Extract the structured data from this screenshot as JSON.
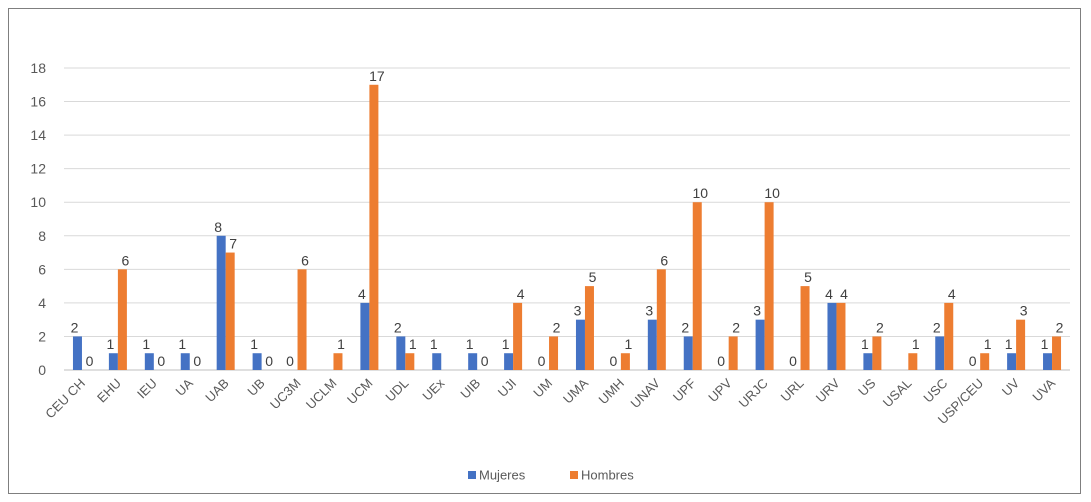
{
  "chart_data": {
    "type": "bar",
    "categories": [
      "CEU CH",
      "EHU",
      "IEU",
      "UA",
      "UAB",
      "UB",
      "UC3M",
      "UCLM",
      "UCM",
      "UDL",
      "UEx",
      "UIB",
      "UJI",
      "UM",
      "UMA",
      "UMH",
      "UNAV",
      "UPF",
      "UPV",
      "URJC",
      "URL",
      "URV",
      "US",
      "USAL",
      "USC",
      "USP/CEU",
      "UV",
      "UVA"
    ],
    "series": [
      {
        "name": "Mujeres",
        "color": "#4472c4",
        "values": [
          2,
          1,
          1,
          1,
          8,
          1,
          0,
          null,
          4,
          2,
          1,
          1,
          1,
          0,
          3,
          0,
          3,
          2,
          0,
          3,
          0,
          4,
          1,
          null,
          2,
          0,
          1,
          1
        ]
      },
      {
        "name": "Hombres",
        "color": "#ed7d31",
        "values": [
          0,
          6,
          0,
          0,
          7,
          0,
          6,
          1,
          17,
          1,
          null,
          0,
          4,
          2,
          5,
          1,
          6,
          10,
          2,
          10,
          5,
          4,
          2,
          1,
          4,
          1,
          3,
          2
        ]
      }
    ],
    "ylim": [
      0,
      18
    ],
    "yticks": [
      0,
      2,
      4,
      6,
      8,
      10,
      12,
      14,
      16,
      18
    ],
    "grid": true,
    "legend": "bottom"
  }
}
